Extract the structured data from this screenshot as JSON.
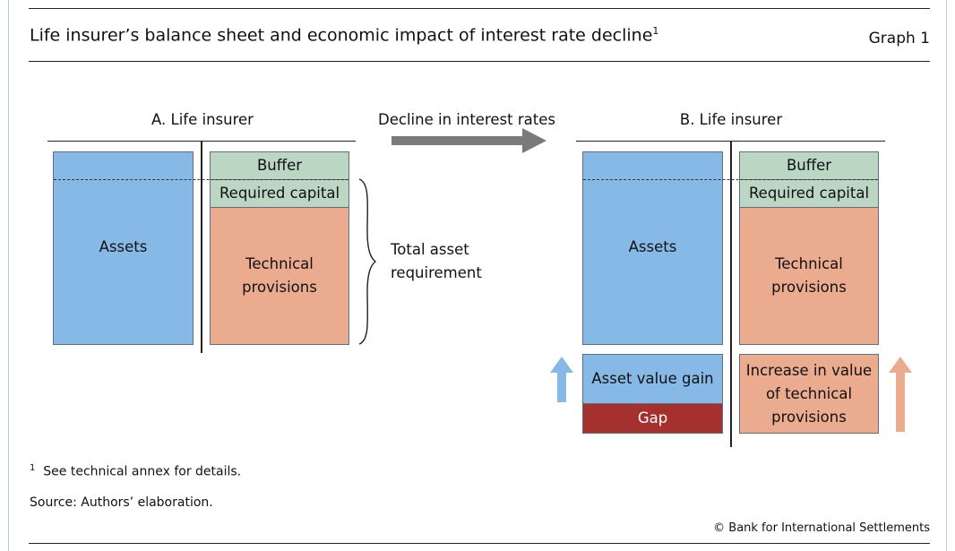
{
  "header": {
    "title": "Life insurer’s balance sheet and economic impact of interest rate decline",
    "title_footnote_marker": "1",
    "graph_number": "Graph 1"
  },
  "panel_a": {
    "heading": "A. Life insurer",
    "assets": "Assets",
    "buffer": "Buffer",
    "required_capital": "Required capital",
    "technical_provisions": "Technical\nprovisions"
  },
  "brace_label": "Total asset\nrequirement",
  "transition": {
    "label": "Decline in interest rates"
  },
  "panel_b": {
    "heading": "B. Life insurer",
    "assets": "Assets",
    "buffer": "Buffer",
    "required_capital": "Required capital",
    "technical_provisions": "Technical\nprovisions",
    "asset_value_gain": "Asset value gain",
    "gap": "Gap",
    "increase_technical_provisions": "Increase in value\nof technical\nprovisions"
  },
  "footer": {
    "footnote_marker": "1",
    "footnote": "See technical annex for details.",
    "source": "Source: Authors’ elaboration.",
    "copyright": "© Bank for International Settlements"
  },
  "colors": {
    "assets": "#86b9e6",
    "buffer_capital": "#bcd6c4",
    "technical_provisions": "#ebab8e",
    "gap": "#a6302d",
    "transition_arrow": "#7a7a7a"
  }
}
